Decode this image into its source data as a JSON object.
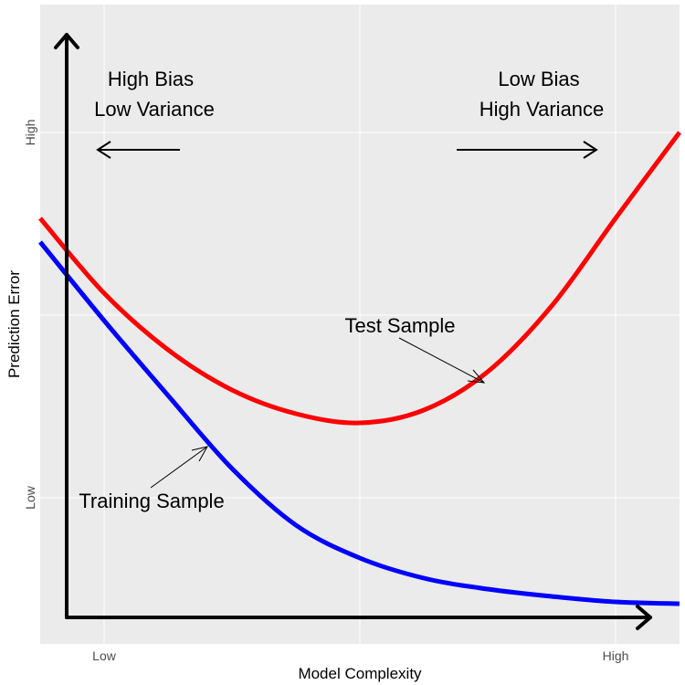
{
  "chart_data": {
    "type": "line",
    "title": "",
    "xlabel": "Model Complexity",
    "ylabel": "Prediction Error",
    "x_ticks": [
      {
        "label": "Low",
        "value": 1
      },
      {
        "label": "High",
        "value": 9
      }
    ],
    "y_ticks": [
      {
        "label": "Low",
        "value": 1
      },
      {
        "label": "High",
        "value": 3
      }
    ],
    "xlim": [
      0,
      10
    ],
    "ylim": [
      0.2,
      3.7
    ],
    "grid": true,
    "colors": {
      "panel": "#ebebeb",
      "grid": "#ffffff",
      "training": "#0000ff",
      "test": "#ff0000",
      "axes": "#000000"
    },
    "series": [
      {
        "color": "#ff0000",
        "x": [
          0,
          1,
          2,
          3,
          4,
          5,
          6,
          7,
          8,
          9,
          10
        ],
        "y": [
          2.53,
          2.12,
          1.81,
          1.59,
          1.46,
          1.41,
          1.48,
          1.69,
          2.05,
          2.53,
          3.0
        ]
      },
      {
        "color": "#0000ff",
        "x": [
          0,
          1,
          2,
          3,
          4,
          5,
          6,
          7,
          8,
          9,
          10
        ],
        "y": [
          2.4,
          1.97,
          1.56,
          1.16,
          0.85,
          0.67,
          0.56,
          0.5,
          0.46,
          0.43,
          0.42
        ]
      }
    ],
    "annotations": {
      "left_regime": [
        "High Bias",
        "Low Variance"
      ],
      "right_regime": [
        "Low Bias",
        "High Variance"
      ],
      "test_label": "Test Sample",
      "training_label": "Training Sample"
    }
  }
}
